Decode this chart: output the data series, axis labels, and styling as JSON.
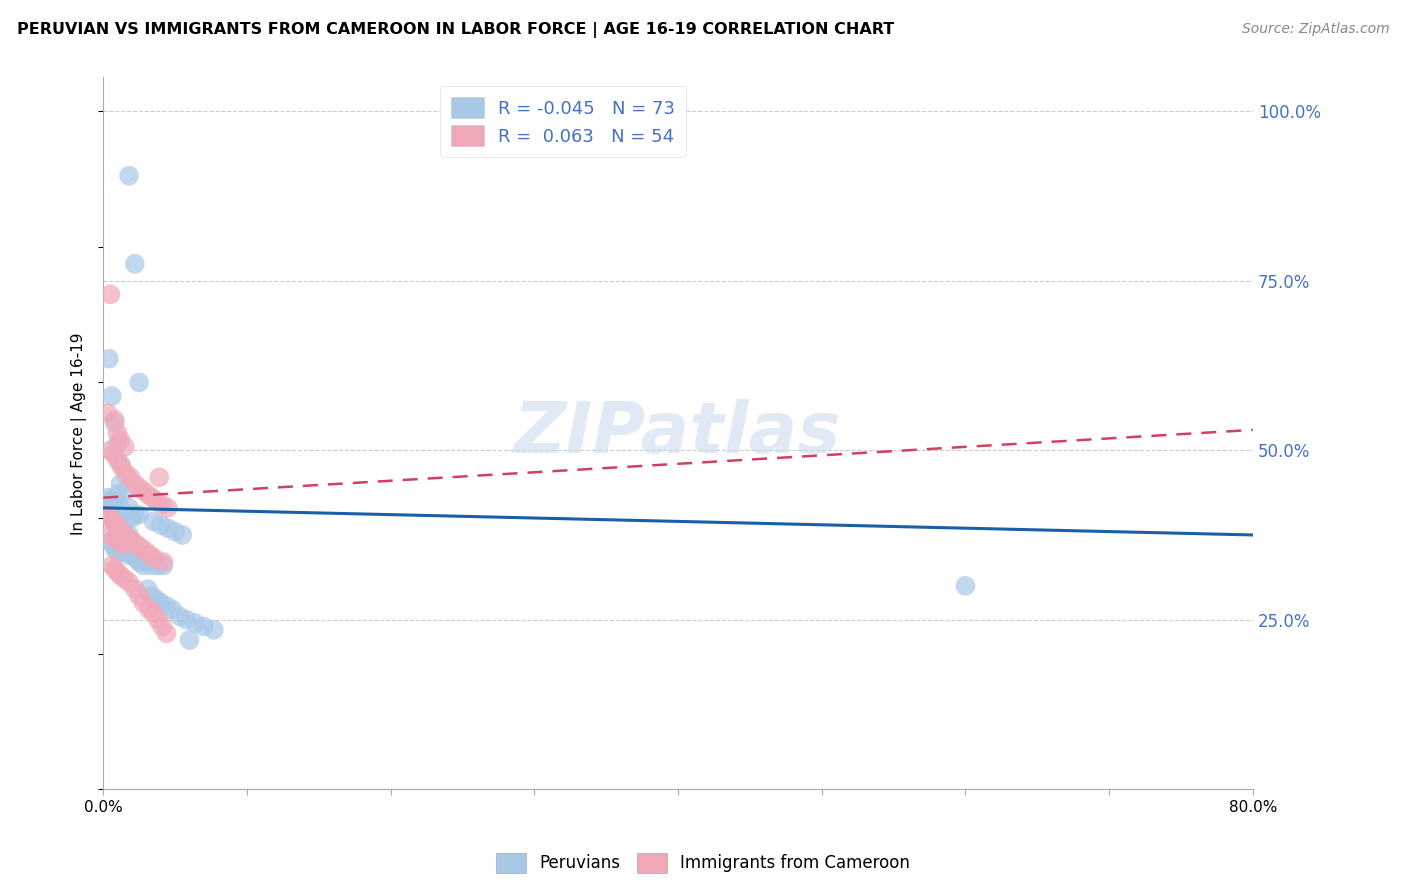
{
  "title": "PERUVIAN VS IMMIGRANTS FROM CAMEROON IN LABOR FORCE | AGE 16-19 CORRELATION CHART",
  "source": "Source: ZipAtlas.com",
  "ylabel": "In Labor Force | Age 16-19",
  "legend_label1": "Peruvians",
  "legend_label2": "Immigrants from Cameroon",
  "R1": -0.045,
  "N1": 73,
  "R2": 0.063,
  "N2": 54,
  "color_blue": "#a8c8e8",
  "color_pink": "#f0a8b8",
  "color_blue_line": "#1a5fa8",
  "color_pink_line": "#d04060",
  "watermark": "ZIPatlas",
  "xmin": 0.0,
  "xmax": 0.8,
  "ymin": 0.0,
  "ymax": 1.05,
  "grid_vals": [
    0.25,
    0.5,
    0.75,
    1.0
  ],
  "right_tick_labels": [
    "25.0%",
    "50.0%",
    "75.0%",
    "100.0%"
  ],
  "blue_x": [
    0.018,
    0.022,
    0.004,
    0.025,
    0.006,
    0.008,
    0.01,
    0.012,
    0.012,
    0.015,
    0.01,
    0.008,
    0.006,
    0.005,
    0.012,
    0.018,
    0.022,
    0.025,
    0.02,
    0.015,
    0.01,
    0.012,
    0.015,
    0.018,
    0.005,
    0.007,
    0.008,
    0.01,
    0.013,
    0.015,
    0.018,
    0.022,
    0.025,
    0.028,
    0.03,
    0.033,
    0.038,
    0.042,
    0.003,
    0.004,
    0.005,
    0.006,
    0.007,
    0.008,
    0.009,
    0.01,
    0.011,
    0.013,
    0.015,
    0.017,
    0.019,
    0.021,
    0.023,
    0.025,
    0.028,
    0.031,
    0.034,
    0.037,
    0.04,
    0.044,
    0.048,
    0.053,
    0.058,
    0.064,
    0.07,
    0.077,
    0.035,
    0.04,
    0.045,
    0.05,
    0.055,
    0.6,
    0.06
  ],
  "blue_y": [
    0.905,
    0.775,
    0.635,
    0.6,
    0.58,
    0.54,
    0.51,
    0.48,
    0.45,
    0.44,
    0.435,
    0.425,
    0.425,
    0.42,
    0.415,
    0.415,
    0.405,
    0.405,
    0.4,
    0.395,
    0.385,
    0.385,
    0.375,
    0.375,
    0.365,
    0.36,
    0.355,
    0.35,
    0.35,
    0.35,
    0.345,
    0.345,
    0.345,
    0.34,
    0.335,
    0.33,
    0.33,
    0.33,
    0.43,
    0.425,
    0.42,
    0.415,
    0.41,
    0.405,
    0.4,
    0.395,
    0.375,
    0.365,
    0.36,
    0.355,
    0.35,
    0.345,
    0.34,
    0.335,
    0.33,
    0.295,
    0.285,
    0.28,
    0.275,
    0.27,
    0.265,
    0.255,
    0.25,
    0.245,
    0.24,
    0.235,
    0.395,
    0.39,
    0.385,
    0.38,
    0.375,
    0.3,
    0.22
  ],
  "pink_x": [
    0.005,
    0.003,
    0.008,
    0.01,
    0.012,
    0.015,
    0.005,
    0.007,
    0.01,
    0.013,
    0.016,
    0.019,
    0.022,
    0.025,
    0.028,
    0.031,
    0.034,
    0.037,
    0.041,
    0.045,
    0.003,
    0.005,
    0.007,
    0.009,
    0.011,
    0.013,
    0.015,
    0.018,
    0.021,
    0.024,
    0.027,
    0.03,
    0.033,
    0.036,
    0.039,
    0.042,
    0.006,
    0.008,
    0.01,
    0.012,
    0.015,
    0.018,
    0.022,
    0.025,
    0.028,
    0.032,
    0.035,
    0.038,
    0.041,
    0.044,
    0.005,
    0.008,
    0.011,
    0.014
  ],
  "pink_y": [
    0.73,
    0.555,
    0.545,
    0.525,
    0.515,
    0.505,
    0.5,
    0.495,
    0.485,
    0.475,
    0.465,
    0.46,
    0.45,
    0.445,
    0.44,
    0.435,
    0.43,
    0.425,
    0.42,
    0.415,
    0.405,
    0.4,
    0.395,
    0.39,
    0.385,
    0.38,
    0.375,
    0.37,
    0.365,
    0.36,
    0.355,
    0.35,
    0.345,
    0.34,
    0.46,
    0.335,
    0.33,
    0.325,
    0.32,
    0.315,
    0.31,
    0.305,
    0.295,
    0.285,
    0.275,
    0.265,
    0.26,
    0.25,
    0.24,
    0.23,
    0.375,
    0.37,
    0.365,
    0.36
  ]
}
